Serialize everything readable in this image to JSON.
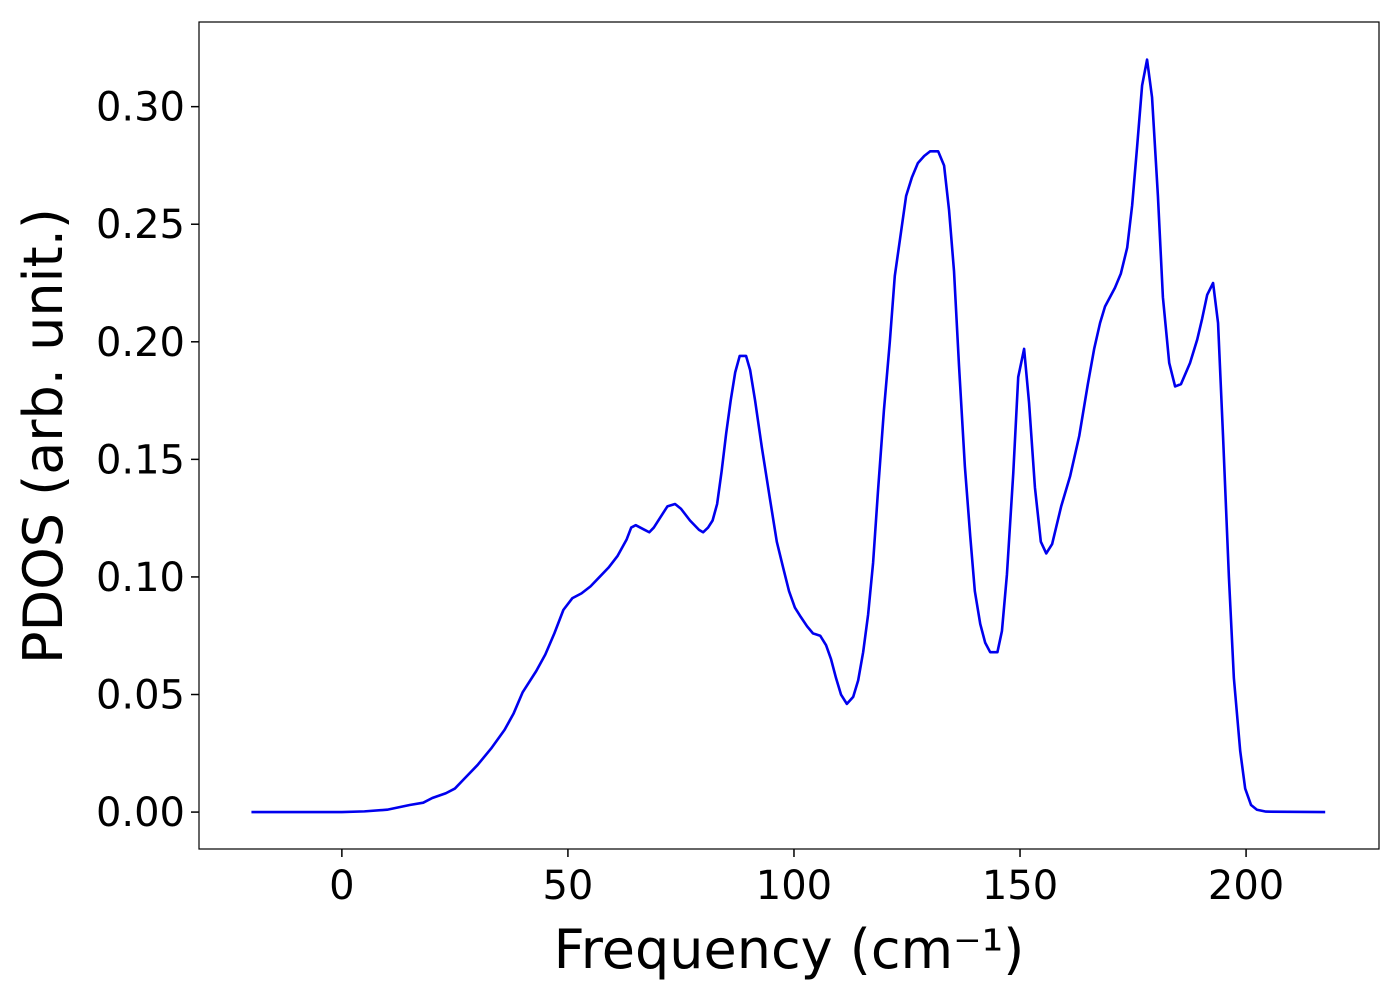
{
  "chart_data": {
    "type": "line",
    "xlabel": "Frequency (cm⁻¹)",
    "ylabel": "PDOS (arb. unit.)",
    "xlim": [
      -31.6,
      229.4
    ],
    "ylim": [
      -0.0157,
      0.336
    ],
    "xticks": [
      0,
      50,
      100,
      150,
      200
    ],
    "yticks": [
      {
        "value": 0,
        "label": "0.00"
      },
      {
        "value": 0.05,
        "label": "0.05"
      },
      {
        "value": 0.1,
        "label": "0.10"
      },
      {
        "value": 0.15,
        "label": "0.15"
      },
      {
        "value": 0.2,
        "label": "0.20"
      },
      {
        "value": 0.25,
        "label": "0.25"
      },
      {
        "value": 0.3,
        "label": "0.30"
      }
    ],
    "grid": false,
    "x": [
      -20,
      0,
      5,
      10,
      15,
      18,
      20,
      23,
      25,
      27,
      30,
      33,
      36,
      38,
      40,
      43,
      45,
      47,
      49,
      51,
      53,
      55,
      57,
      59,
      61,
      63,
      64,
      65,
      67,
      68,
      69,
      71,
      72,
      73.7,
      75,
      77,
      79,
      79.9,
      81,
      82,
      83,
      84,
      85,
      86,
      87,
      88,
      89.4,
      90.3,
      91.4,
      92.9,
      94.7,
      96.2,
      97.6,
      98.9,
      100.2,
      101.5,
      102.9,
      104.2,
      105.8,
      107.1,
      108.2,
      109.3,
      110.4,
      111.7,
      113.1,
      114.2,
      115.3,
      116.4,
      117.5,
      118.6,
      119.9,
      121.2,
      122.3,
      123.7,
      124.8,
      126.1,
      127.4,
      128.8,
      130.1,
      131.9,
      133.2,
      134.3,
      135.4,
      136.5,
      137.8,
      139,
      140,
      141.2,
      142.3,
      143.4,
      145,
      146,
      147.1,
      148.5,
      149.6,
      150.9,
      152,
      153.3,
      154.6,
      155.8,
      157.1,
      159.1,
      161.1,
      163.1,
      165,
      166.4,
      167.7,
      168.8,
      171,
      172.3,
      173.7,
      174.8,
      175.9,
      177,
      178.1,
      179.2,
      180.5,
      181.6,
      183,
      184.3,
      185.6,
      187.6,
      189.2,
      190.3,
      191.4,
      192.7,
      193.8,
      194.9,
      196.2,
      197.3,
      198.7,
      199.8,
      201.1,
      202.4,
      204.4,
      217.5
    ],
    "series": [
      {
        "name": "PDOS",
        "color": "#0000ee",
        "values": [
          0,
          0,
          0.0003,
          0.001,
          0.003,
          0.004,
          0.006,
          0.008,
          0.01,
          0.014,
          0.02,
          0.027,
          0.035,
          0.042,
          0.051,
          0.06,
          0.067,
          0.076,
          0.086,
          0.091,
          0.093,
          0.096,
          0.1,
          0.104,
          0.109,
          0.116,
          0.121,
          0.122,
          0.12,
          0.119,
          0.121,
          0.127,
          0.13,
          0.131,
          0.129,
          0.124,
          0.12,
          0.119,
          0.121,
          0.124,
          0.131,
          0.145,
          0.161,
          0.175,
          0.187,
          0.194,
          0.194,
          0.188,
          0.175,
          0.155,
          0.133,
          0.115,
          0.104,
          0.094,
          0.087,
          0.083,
          0.079,
          0.076,
          0.075,
          0.071,
          0.065,
          0.057,
          0.05,
          0.046,
          0.049,
          0.056,
          0.068,
          0.084,
          0.106,
          0.137,
          0.171,
          0.2,
          0.228,
          0.247,
          0.262,
          0.27,
          0.276,
          0.279,
          0.281,
          0.281,
          0.275,
          0.256,
          0.23,
          0.19,
          0.147,
          0.117,
          0.094,
          0.08,
          0.072,
          0.068,
          0.068,
          0.077,
          0.101,
          0.144,
          0.185,
          0.197,
          0.174,
          0.138,
          0.115,
          0.11,
          0.114,
          0.13,
          0.143,
          0.16,
          0.182,
          0.197,
          0.208,
          0.215,
          0.223,
          0.229,
          0.24,
          0.258,
          0.283,
          0.309,
          0.32,
          0.304,
          0.262,
          0.219,
          0.191,
          0.181,
          0.182,
          0.191,
          0.201,
          0.21,
          0.22,
          0.225,
          0.208,
          0.16,
          0.1,
          0.057,
          0.026,
          0.01,
          0.003,
          0.001,
          0.0002,
          0
        ]
      }
    ]
  }
}
